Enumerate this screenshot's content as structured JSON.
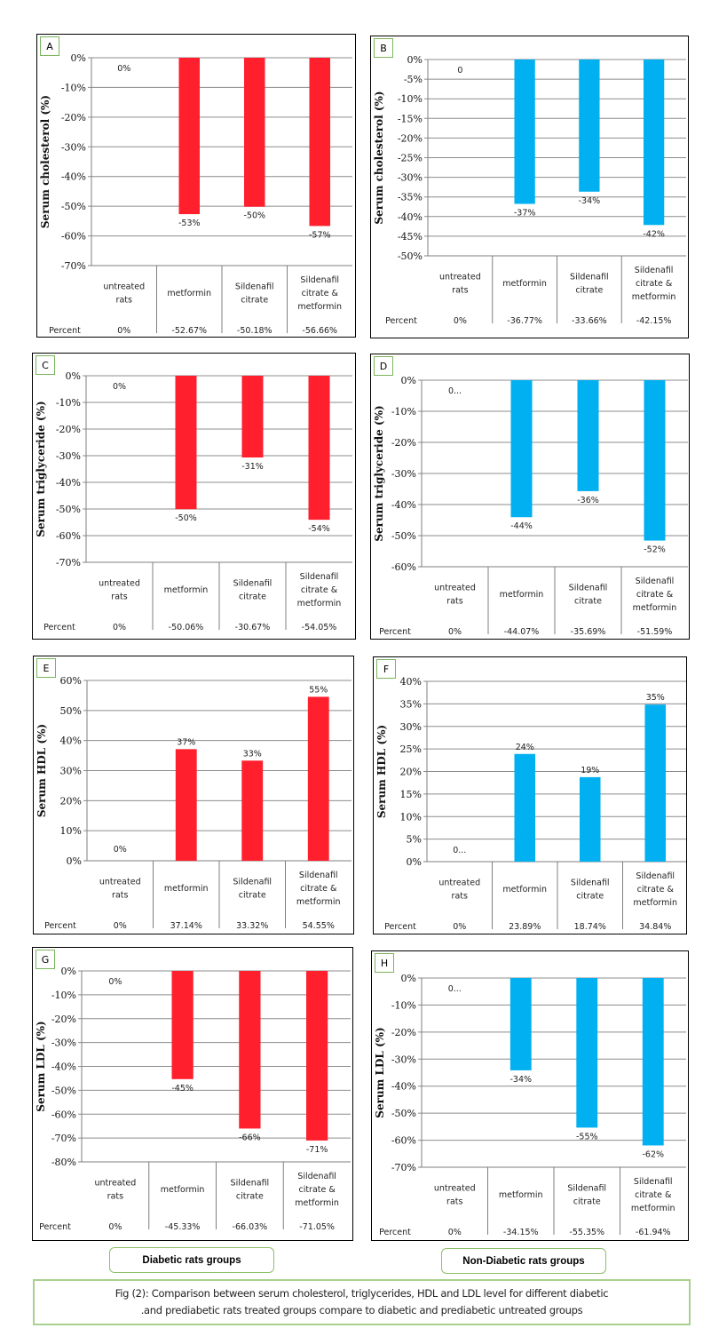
{
  "categories": [
    "untreated rats",
    "metformin",
    "Sildenafil citrate",
    "Sildenafil citrate & metformin"
  ],
  "colors": {
    "diabetic": "#ff1f2d",
    "non_diabetic": "#00b0f0",
    "grid": "#8c8c8c",
    "label_border": "#7ab55c"
  },
  "chart_data": [
    {
      "panel": "A",
      "type": "bar",
      "ylabel": "Serum cholesterol (%)",
      "categories": [
        "untreated rats",
        "metformin",
        "Sildenafil citrate",
        "Sildenafil citrate & metformin"
      ],
      "values": [
        0,
        -52.67,
        -50.18,
        -56.66
      ],
      "data_labels": [
        "0%",
        "-53%",
        "-50%",
        "-57%"
      ],
      "table_row_label": "Percent",
      "table_values": [
        "0%",
        "-52.67%",
        "-50.18%",
        "-56.66%"
      ],
      "ylim": [
        -70,
        0
      ],
      "ystep": 10,
      "yticks": [
        "0%",
        "-10%",
        "-20%",
        "-30%",
        "-40%",
        "-50%",
        "-60%",
        "-70%"
      ],
      "group": "diabetic",
      "grid": true
    },
    {
      "panel": "B",
      "type": "bar",
      "ylabel": "Serum cholesterol (%)",
      "categories": [
        "untreated rats",
        "metformin",
        "Sildenafil citrate",
        "Sildenafil citrate & metformin"
      ],
      "values": [
        0,
        -36.77,
        -33.66,
        -42.15
      ],
      "data_labels": [
        "0",
        "-37%",
        "-34%",
        "-42%"
      ],
      "table_row_label": "Percent",
      "table_values": [
        "0%",
        "-36.77%",
        "-33.66%",
        "-42.15%"
      ],
      "ylim": [
        -50,
        0
      ],
      "ystep": 5,
      "yticks": [
        "0%",
        "-5%",
        "-10%",
        "-15%",
        "-20%",
        "-25%",
        "-30%",
        "-35%",
        "-40%",
        "-45%",
        "-50%"
      ],
      "group": "non_diabetic",
      "grid": true
    },
    {
      "panel": "C",
      "type": "bar",
      "ylabel": "Serum triglyceride (%)",
      "categories": [
        "untreated rats",
        "metformin",
        "Sildenafil citrate",
        "Sildenafil citrate & metformin"
      ],
      "values": [
        0,
        -50.06,
        -30.67,
        -54.05
      ],
      "data_labels": [
        "0%",
        "-50%",
        "-31%",
        "-54%"
      ],
      "table_row_label": "Percent",
      "table_values": [
        "0%",
        "-50.06%",
        "-30.67%",
        "-54.05%"
      ],
      "ylim": [
        -70,
        0
      ],
      "ystep": 10,
      "yticks": [
        "0%",
        "-10%",
        "-20%",
        "-30%",
        "-40%",
        "-50%",
        "-60%",
        "-70%"
      ],
      "group": "diabetic",
      "grid": true
    },
    {
      "panel": "D",
      "type": "bar",
      "ylabel": "Serum triglyceride (%)",
      "categories": [
        "untreated rats",
        "metformin",
        "Sildenafil citrate",
        "Sildenafil citrate & metformin"
      ],
      "values": [
        0,
        -44.07,
        -35.69,
        -51.59
      ],
      "data_labels": [
        "0...",
        "-44%",
        "-36%",
        "-52%"
      ],
      "table_row_label": "Percent",
      "table_values": [
        "0%",
        "-44.07%",
        "-35.69%",
        "-51.59%"
      ],
      "ylim": [
        -60,
        0
      ],
      "ystep": 10,
      "yticks": [
        "0%",
        "-10%",
        "-20%",
        "-30%",
        "-40%",
        "-50%",
        "-60%"
      ],
      "group": "non_diabetic",
      "grid": true
    },
    {
      "panel": "E",
      "type": "bar",
      "ylabel": "Serum HDL (%)",
      "categories": [
        "untreated rats",
        "metformin",
        "Sildenafil citrate",
        "Sildenafil citrate & metformin"
      ],
      "values": [
        0,
        37.14,
        33.32,
        54.55
      ],
      "data_labels": [
        "0%",
        "37%",
        "33%",
        "55%"
      ],
      "table_row_label": "Percent",
      "table_values": [
        "0%",
        "37.14%",
        "33.32%",
        "54.55%"
      ],
      "ylim": [
        0,
        60
      ],
      "ystep": 10,
      "yticks": [
        "60%",
        "50%",
        "40%",
        "30%",
        "20%",
        "10%",
        "0%"
      ],
      "group": "diabetic",
      "grid": true
    },
    {
      "panel": "F",
      "type": "bar",
      "ylabel": "Serum HDL (%)",
      "categories": [
        "untreated rats",
        "metformin",
        "Sildenafil citrate",
        "Sildenafil citrate & metformin"
      ],
      "values": [
        0,
        23.89,
        18.74,
        34.84
      ],
      "data_labels": [
        "0...",
        "24%",
        "19%",
        "35%"
      ],
      "table_row_label": "Percent",
      "table_values": [
        "0%",
        "23.89%",
        "18.74%",
        "34.84%"
      ],
      "ylim": [
        0,
        40
      ],
      "ystep": 5,
      "yticks": [
        "40%",
        "35%",
        "30%",
        "25%",
        "20%",
        "15%",
        "10%",
        "5%",
        "0%"
      ],
      "group": "non_diabetic",
      "grid": true
    },
    {
      "panel": "G",
      "type": "bar",
      "ylabel": "Serum LDL (%)",
      "categories": [
        "untreated rats",
        "metformin",
        "Sildenafil citrate",
        "Sildenafil citrate & metformin"
      ],
      "values": [
        0,
        -45.33,
        -66.03,
        -71.05
      ],
      "data_labels": [
        "0%",
        "-45%",
        "-66%",
        "-71%"
      ],
      "table_row_label": "Percent",
      "table_values": [
        "0%",
        "-45.33%",
        "-66.03%",
        "-71.05%"
      ],
      "ylim": [
        -80,
        0
      ],
      "ystep": 10,
      "yticks": [
        "0%",
        "-10%",
        "-20%",
        "-30%",
        "-40%",
        "-50%",
        "-60%",
        "-70%",
        "-80%"
      ],
      "group": "diabetic",
      "grid": true
    },
    {
      "panel": "H",
      "type": "bar",
      "ylabel": "Serum LDL (%)",
      "categories": [
        "untreated rats",
        "metformin",
        "Sildenafil citrate",
        "Sildenafil citrate & metformin"
      ],
      "values": [
        0,
        -34.15,
        -55.35,
        -61.94
      ],
      "data_labels": [
        "0...",
        "-34%",
        "-55%",
        "-62%"
      ],
      "table_row_label": "Percent",
      "table_values": [
        "0%",
        "-34.15%",
        "-55.35%",
        "-61.94%"
      ],
      "ylim": [
        -70,
        0
      ],
      "ystep": 10,
      "yticks": [
        "0%",
        "-10%",
        "-20%",
        "-30%",
        "-40%",
        "-50%",
        "-60%",
        "-70%"
      ],
      "group": "non_diabetic",
      "grid": true
    }
  ],
  "groups": {
    "diabetic_label": "Diabetic rats groups",
    "non_diabetic_label": "Non-Diabetic rats groups"
  },
  "caption": {
    "line1": "Fig (2): Comparison between serum cholesterol, triglycerides, HDL and LDL level for different diabetic",
    "line2": ".and prediabetic rats treated groups compare to diabetic and prediabetic untreated groups"
  }
}
